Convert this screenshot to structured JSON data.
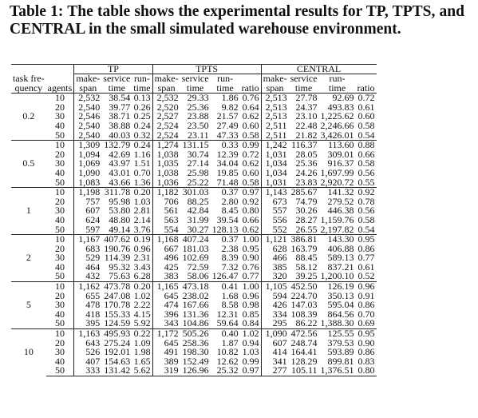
{
  "title": "Table 1: The table shows the experimental results for TP, TPTS, and CENTRAL in the small simulated warehouse environment.",
  "header": {
    "task_frequency": [
      "task fre-",
      "quency"
    ],
    "agents": "agents",
    "groups": [
      {
        "name": "TP",
        "columns": [
          [
            "make-",
            "span"
          ],
          [
            "service",
            "time"
          ],
          [
            "run-",
            "time"
          ]
        ]
      },
      {
        "name": "TPTS",
        "columns": [
          [
            "make-",
            "span"
          ],
          [
            "service",
            "time"
          ],
          [
            "run-",
            "time"
          ],
          [
            "ratio"
          ]
        ]
      },
      {
        "name": "CENTRAL",
        "columns": [
          [
            "make-",
            "span"
          ],
          [
            "service",
            "time"
          ],
          [
            "run-",
            "time"
          ],
          [
            "ratio"
          ]
        ]
      }
    ]
  },
  "row_groups": [
    {
      "task_frequency": "0.2",
      "rows": [
        [
          "10",
          "2,532",
          "38.54",
          "0.13",
          "2,532",
          "29.33",
          "1.86",
          "0.76",
          "2,513",
          "27.78",
          "92.69",
          "0.72"
        ],
        [
          "20",
          "2,540",
          "39.77",
          "0.26",
          "2,520",
          "25.36",
          "9.82",
          "0.64",
          "2,513",
          "24.37",
          "493.83",
          "0.61"
        ],
        [
          "30",
          "2,546",
          "38.71",
          "0.25",
          "2,527",
          "23.88",
          "21.57",
          "0.62",
          "2,513",
          "23.10",
          "1,225.62",
          "0.60"
        ],
        [
          "40",
          "2,540",
          "38.88",
          "0.24",
          "2,524",
          "23.50",
          "27.49",
          "0.60",
          "2,511",
          "22.48",
          "2,246.66",
          "0.58"
        ],
        [
          "50",
          "2,540",
          "40.03",
          "0.32",
          "2,524",
          "23.11",
          "47.33",
          "0.58",
          "2,511",
          "21.82",
          "3,426.01",
          "0.54"
        ]
      ]
    },
    {
      "task_frequency": "0.5",
      "rows": [
        [
          "10",
          "1,309",
          "132.79",
          "0.24",
          "1,274",
          "131.15",
          "0.33",
          "0.99",
          "1,242",
          "116.37",
          "113.60",
          "0.88"
        ],
        [
          "20",
          "1,094",
          "42.69",
          "1.16",
          "1,038",
          "30.74",
          "12.39",
          "0.72",
          "1,031",
          "28.05",
          "309.01",
          "0.66"
        ],
        [
          "30",
          "1,069",
          "43.97",
          "1.51",
          "1,035",
          "27.14",
          "34.04",
          "0.62",
          "1,034",
          "25.36",
          "916.37",
          "0.58"
        ],
        [
          "40",
          "1,090",
          "43.01",
          "0.70",
          "1,038",
          "25.98",
          "19.85",
          "0.60",
          "1,034",
          "24.26",
          "1,697.99",
          "0.56"
        ],
        [
          "50",
          "1,083",
          "43.66",
          "1.36",
          "1,036",
          "25.22",
          "71.48",
          "0.58",
          "1,031",
          "23.83",
          "2,920.72",
          "0.55"
        ]
      ]
    },
    {
      "task_frequency": "1",
      "rows": [
        [
          "10",
          "1,198",
          "311.78",
          "0.20",
          "1,182",
          "301.03",
          "0.37",
          "0.97",
          "1,143",
          "285.67",
          "141.32",
          "0.92"
        ],
        [
          "20",
          "757",
          "95.98",
          "1.03",
          "706",
          "88.25",
          "2.80",
          "0.92",
          "673",
          "74.79",
          "279.52",
          "0.78"
        ],
        [
          "30",
          "607",
          "53.80",
          "2.81",
          "561",
          "42.84",
          "8.45",
          "0.80",
          "557",
          "30.26",
          "446.38",
          "0.56"
        ],
        [
          "40",
          "624",
          "48.80",
          "2.14",
          "563",
          "31.99",
          "39.54",
          "0.66",
          "556",
          "28.27",
          "1,159.76",
          "0.58"
        ],
        [
          "50",
          "597",
          "49.14",
          "3.76",
          "554",
          "30.27",
          "128.13",
          "0.62",
          "552",
          "26.55",
          "2,197.82",
          "0.54"
        ]
      ]
    },
    {
      "task_frequency": "2",
      "rows": [
        [
          "10",
          "1,167",
          "407.62",
          "0.19",
          "1,168",
          "407.24",
          "0.37",
          "1.00",
          "1,121",
          "386.81",
          "143.30",
          "0.95"
        ],
        [
          "20",
          "683",
          "190.76",
          "0.96",
          "667",
          "181.03",
          "2.38",
          "0.95",
          "628",
          "163.79",
          "406.88",
          "0.86"
        ],
        [
          "30",
          "529",
          "114.39",
          "2.31",
          "496",
          "102.69",
          "8.39",
          "0.90",
          "466",
          "88.45",
          "589.13",
          "0.77"
        ],
        [
          "40",
          "464",
          "95.32",
          "3.43",
          "425",
          "72.59",
          "7.32",
          "0.76",
          "385",
          "58.12",
          "837.21",
          "0.61"
        ],
        [
          "50",
          "432",
          "75.63",
          "6.28",
          "383",
          "58.06",
          "126.47",
          "0.77",
          "320",
          "39.25",
          "1,200.10",
          "0.52"
        ]
      ]
    },
    {
      "task_frequency": "5",
      "rows": [
        [
          "10",
          "1,162",
          "473.78",
          "0.20",
          "1,165",
          "473.18",
          "0.41",
          "1.00",
          "1,105",
          "452.50",
          "126.19",
          "0.96"
        ],
        [
          "20",
          "655",
          "247.08",
          "1.02",
          "645",
          "238.02",
          "1.68",
          "0.96",
          "594",
          "224.70",
          "350.13",
          "0.91"
        ],
        [
          "30",
          "478",
          "170.78",
          "2.22",
          "474",
          "167.66",
          "8.58",
          "0.98",
          "426",
          "147.03",
          "595.04",
          "0.86"
        ],
        [
          "40",
          "418",
          "155.33",
          "4.15",
          "396",
          "131.36",
          "12.31",
          "0.85",
          "334",
          "108.39",
          "864.56",
          "0.70"
        ],
        [
          "50",
          "395",
          "124.59",
          "5.92",
          "343",
          "104.86",
          "59.64",
          "0.84",
          "295",
          "86.22",
          "1,388.30",
          "0.69"
        ]
      ]
    },
    {
      "task_frequency": "10",
      "rows": [
        [
          "10",
          "1,163",
          "495.93",
          "0.22",
          "1,172",
          "505.26",
          "0.40",
          "1.02",
          "1,090",
          "472.56",
          "125.55",
          "0.95"
        ],
        [
          "20",
          "643",
          "275.24",
          "1.09",
          "645",
          "258.36",
          "1.87",
          "0.94",
          "607",
          "248.74",
          "379.53",
          "0.90"
        ],
        [
          "30",
          "526",
          "192.01",
          "1.98",
          "491",
          "198.30",
          "10.82",
          "1.03",
          "414",
          "164.41",
          "593.89",
          "0.86"
        ],
        [
          "40",
          "407",
          "154.63",
          "1.65",
          "389",
          "152.49",
          "12.62",
          "0.99",
          "341",
          "128.29",
          "899.81",
          "0.83"
        ],
        [
          "50",
          "333",
          "131.42",
          "5.62",
          "319",
          "126.96",
          "25.32",
          "0.97",
          "277",
          "105.11",
          "1,376.51",
          "0.80"
        ]
      ]
    }
  ]
}
